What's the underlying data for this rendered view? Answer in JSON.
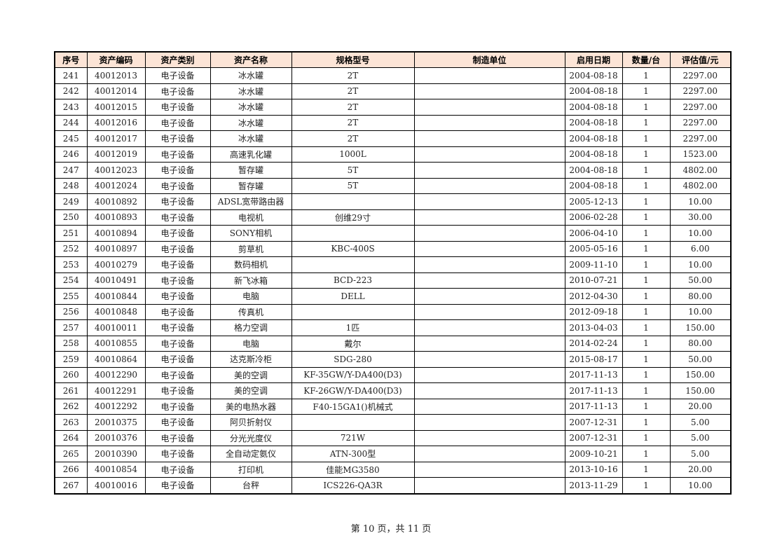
{
  "table": {
    "headers": [
      "序号",
      "资产编码",
      "资产类别",
      "资产名称",
      "规格型号",
      "制造单位",
      "启用日期",
      "数量/台",
      "评估值/元"
    ],
    "rows": [
      [
        "241",
        "40012013",
        "电子设备",
        "冰水罐",
        "2T",
        "",
        "2004-08-18",
        "1",
        "2297.00"
      ],
      [
        "242",
        "40012014",
        "电子设备",
        "冰水罐",
        "2T",
        "",
        "2004-08-18",
        "1",
        "2297.00"
      ],
      [
        "243",
        "40012015",
        "电子设备",
        "冰水罐",
        "2T",
        "",
        "2004-08-18",
        "1",
        "2297.00"
      ],
      [
        "244",
        "40012016",
        "电子设备",
        "冰水罐",
        "2T",
        "",
        "2004-08-18",
        "1",
        "2297.00"
      ],
      [
        "245",
        "40012017",
        "电子设备",
        "冰水罐",
        "2T",
        "",
        "2004-08-18",
        "1",
        "2297.00"
      ],
      [
        "246",
        "40012019",
        "电子设备",
        "高速乳化罐",
        "1000L",
        "",
        "2004-08-18",
        "1",
        "1523.00"
      ],
      [
        "247",
        "40012023",
        "电子设备",
        "暂存罐",
        "5T",
        "",
        "2004-08-18",
        "1",
        "4802.00"
      ],
      [
        "248",
        "40012024",
        "电子设备",
        "暂存罐",
        "5T",
        "",
        "2004-08-18",
        "1",
        "4802.00"
      ],
      [
        "249",
        "40010892",
        "电子设备",
        "ADSL宽带路由器",
        "",
        "",
        "2005-12-13",
        "1",
        "10.00"
      ],
      [
        "250",
        "40010893",
        "电子设备",
        "电视机",
        "创维29寸",
        "",
        "2006-02-28",
        "1",
        "30.00"
      ],
      [
        "251",
        "40010894",
        "电子设备",
        "SONY相机",
        "",
        "",
        "2006-04-10",
        "1",
        "10.00"
      ],
      [
        "252",
        "40010897",
        "电子设备",
        "剪草机",
        "KBC-400S",
        "",
        "2005-05-16",
        "1",
        "6.00"
      ],
      [
        "253",
        "40010279",
        "电子设备",
        "数码相机",
        "",
        "",
        "2009-11-10",
        "1",
        "10.00"
      ],
      [
        "254",
        "40010491",
        "电子设备",
        "新飞冰箱",
        "BCD-223",
        "",
        "2010-07-21",
        "1",
        "50.00"
      ],
      [
        "255",
        "40010844",
        "电子设备",
        "电脑",
        "DELL",
        "",
        "2012-04-30",
        "1",
        "80.00"
      ],
      [
        "256",
        "40010848",
        "电子设备",
        "传真机",
        "",
        "",
        "2012-09-18",
        "1",
        "10.00"
      ],
      [
        "257",
        "40010011",
        "电子设备",
        "格力空调",
        "1匹",
        "",
        "2013-04-03",
        "1",
        "150.00"
      ],
      [
        "258",
        "40010855",
        "电子设备",
        "电脑",
        "戴尔",
        "",
        "2014-02-24",
        "1",
        "80.00"
      ],
      [
        "259",
        "40010864",
        "电子设备",
        "达克斯冷柜",
        "SDG-280",
        "",
        "2015-08-17",
        "1",
        "50.00"
      ],
      [
        "260",
        "40012290",
        "电子设备",
        "美的空调",
        "KF-35GW/Y-DA400(D3)",
        "",
        "2017-11-13",
        "1",
        "150.00"
      ],
      [
        "261",
        "40012291",
        "电子设备",
        "美的空调",
        "KF-26GW/Y-DA400(D3)",
        "",
        "2017-11-13",
        "1",
        "150.00"
      ],
      [
        "262",
        "40012292",
        "电子设备",
        "美的电热水器",
        "F40-15GA1()机械式",
        "",
        "2017-11-13",
        "1",
        "20.00"
      ],
      [
        "263",
        "20010375",
        "电子设备",
        "阿贝折射仪",
        "",
        "",
        "2007-12-31",
        "1",
        "5.00"
      ],
      [
        "264",
        "20010376",
        "电子设备",
        "分光光度仪",
        "721W",
        "",
        "2007-12-31",
        "1",
        "5.00"
      ],
      [
        "265",
        "20010390",
        "电子设备",
        "全自动定氨仪",
        "ATN-300型",
        "",
        "2009-10-21",
        "1",
        "5.00"
      ],
      [
        "266",
        "40010854",
        "电子设备",
        "打印机",
        "佳能MG3580",
        "",
        "2013-10-16",
        "1",
        "20.00"
      ],
      [
        "267",
        "40010016",
        "电子设备",
        "台秤",
        "ICS226-QA3R",
        "",
        "2013-11-29",
        "1",
        "10.00"
      ]
    ]
  },
  "footer": {
    "page_text": "第 10 页，共 11 页"
  }
}
